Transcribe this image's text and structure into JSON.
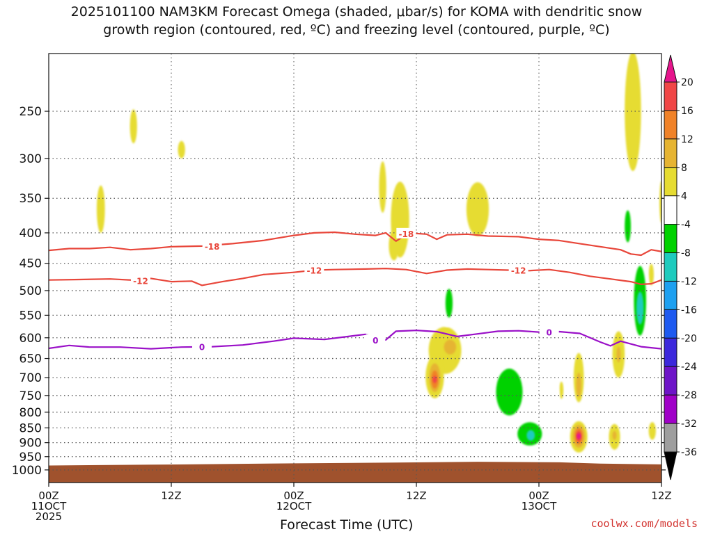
{
  "title": {
    "line1": "2025101100 NAM3KM Forecast Omega (shaded, μbar/s) for KOMA with dendritic snow",
    "line2": "growth region (contoured, red, ºC) and freezing level (contoured, purple, ºC)"
  },
  "credit": "coolwx.com/models",
  "colors": {
    "dgz_contour": "#e8463a",
    "freezing_contour": "#9a10c8",
    "terrain": "#a0522d",
    "grid": "#555555"
  },
  "chart_data": {
    "type": "heatmap",
    "xlabel": "Forecast Time (UTC)",
    "ylabel": "",
    "x_range_hours": [
      0,
      60
    ],
    "y_range_mb": [
      1050,
      200
    ],
    "y_scale": "log",
    "grid": "dotted",
    "y_ticks": [
      250,
      300,
      350,
      400,
      450,
      500,
      550,
      600,
      650,
      700,
      750,
      800,
      850,
      900,
      950,
      1000
    ],
    "y_tick_labels": [
      "250",
      "300",
      "350",
      "400",
      "450",
      "500",
      "550",
      "600",
      "650",
      "700",
      "750",
      "800",
      "850",
      "900",
      "950",
      "1000"
    ],
    "x_ticks": [
      {
        "hour": 0,
        "lines": [
          "00Z",
          "11OCT",
          "2025"
        ]
      },
      {
        "hour": 12,
        "lines": [
          "12Z"
        ]
      },
      {
        "hour": 24,
        "lines": [
          "00Z",
          "12OCT"
        ]
      },
      {
        "hour": 36,
        "lines": [
          "12Z"
        ]
      },
      {
        "hour": 48,
        "lines": [
          "00Z",
          "13OCT"
        ]
      },
      {
        "hour": 60,
        "lines": [
          "12Z"
        ]
      }
    ],
    "colorbar": {
      "labels": [
        "20",
        "16",
        "12",
        "8",
        "4",
        "-4",
        "-8",
        "-12",
        "-16",
        "-20",
        "-24",
        "-28",
        "-32",
        "-36"
      ],
      "segments": [
        {
          "range": [
            -40,
            -36
          ],
          "color": "#000000"
        },
        {
          "range": [
            -36,
            -32
          ],
          "color": "#9e9e9e"
        },
        {
          "range": [
            -32,
            -28
          ],
          "color": "#a000c8"
        },
        {
          "range": [
            -28,
            -24
          ],
          "color": "#6e14c8"
        },
        {
          "range": [
            -24,
            -20
          ],
          "color": "#3c28dc"
        },
        {
          "range": [
            -20,
            -16
          ],
          "color": "#1e5af0"
        },
        {
          "range": [
            -16,
            -12
          ],
          "color": "#1ea0f0"
        },
        {
          "range": [
            -12,
            -8
          ],
          "color": "#1ecbbe"
        },
        {
          "range": [
            -8,
            -4
          ],
          "color": "#00d200"
        },
        {
          "range": [
            -4,
            4
          ],
          "color": "#ffffff"
        },
        {
          "range": [
            4,
            8
          ],
          "color": "#e6dc32"
        },
        {
          "range": [
            8,
            12
          ],
          "color": "#e6b432"
        },
        {
          "range": [
            12,
            16
          ],
          "color": "#f08228"
        },
        {
          "range": [
            16,
            20
          ],
          "color": "#f04646"
        },
        {
          "range": [
            20,
            24
          ],
          "color": "#e6148c"
        }
      ]
    },
    "contours": [
      {
        "level": -18,
        "label": "-18",
        "color": "#e8463a",
        "points": [
          [
            0,
            428
          ],
          [
            2,
            425
          ],
          [
            4,
            425
          ],
          [
            6,
            423
          ],
          [
            8,
            427
          ],
          [
            10,
            425
          ],
          [
            12,
            422
          ],
          [
            15,
            421
          ],
          [
            18,
            417
          ],
          [
            21,
            412
          ],
          [
            24,
            404
          ],
          [
            26,
            400
          ],
          [
            28,
            399
          ],
          [
            30,
            402
          ],
          [
            32,
            404
          ],
          [
            33,
            400
          ],
          [
            34,
            413
          ],
          [
            35,
            403
          ],
          [
            36,
            401
          ],
          [
            37,
            402
          ],
          [
            38,
            410
          ],
          [
            39,
            403
          ],
          [
            41,
            402
          ],
          [
            43,
            405
          ],
          [
            46,
            406
          ],
          [
            48,
            410
          ],
          [
            50,
            412
          ],
          [
            52,
            417
          ],
          [
            54,
            422
          ],
          [
            56,
            427
          ],
          [
            57,
            434
          ],
          [
            58,
            436
          ],
          [
            59,
            427
          ],
          [
            60,
            430
          ]
        ],
        "label_at": [
          [
            16,
            421
          ],
          [
            35,
            401
          ]
        ]
      },
      {
        "level": -12,
        "label": "-12",
        "color": "#e8463a",
        "points": [
          [
            0,
            480
          ],
          [
            3,
            479
          ],
          [
            6,
            478
          ],
          [
            9,
            481
          ],
          [
            10,
            477
          ],
          [
            12,
            483
          ],
          [
            14,
            482
          ],
          [
            15,
            490
          ],
          [
            17,
            483
          ],
          [
            19,
            477
          ],
          [
            21,
            470
          ],
          [
            24,
            466
          ],
          [
            26,
            462
          ],
          [
            28,
            461
          ],
          [
            31,
            460
          ],
          [
            33,
            459
          ],
          [
            35,
            461
          ],
          [
            37,
            468
          ],
          [
            39,
            462
          ],
          [
            41,
            460
          ],
          [
            43,
            461
          ],
          [
            45,
            462
          ],
          [
            47,
            463
          ],
          [
            49,
            461
          ],
          [
            51,
            466
          ],
          [
            53,
            473
          ],
          [
            55,
            478
          ],
          [
            57,
            483
          ],
          [
            58,
            488
          ],
          [
            59,
            487
          ],
          [
            60,
            480
          ]
        ],
        "label_at": [
          [
            9,
            481
          ],
          [
            26,
            462
          ],
          [
            46,
            462
          ]
        ]
      },
      {
        "level": 0,
        "label": "0",
        "color": "#9a10c8",
        "points": [
          [
            0,
            625
          ],
          [
            2,
            618
          ],
          [
            4,
            622
          ],
          [
            7,
            622
          ],
          [
            10,
            626
          ],
          [
            13,
            622
          ],
          [
            16,
            621
          ],
          [
            19,
            617
          ],
          [
            22,
            608
          ],
          [
            24,
            601
          ],
          [
            27,
            604
          ],
          [
            29,
            598
          ],
          [
            31,
            592
          ],
          [
            33,
            605
          ],
          [
            34,
            585
          ],
          [
            36,
            583
          ],
          [
            38,
            586
          ],
          [
            40,
            597
          ],
          [
            42,
            591
          ],
          [
            44,
            585
          ],
          [
            46,
            584
          ],
          [
            48,
            587
          ],
          [
            50,
            586
          ],
          [
            52,
            590
          ],
          [
            54,
            610
          ],
          [
            55,
            619
          ],
          [
            56,
            608
          ],
          [
            58,
            621
          ],
          [
            60,
            626
          ]
        ],
        "label_at": [
          [
            15,
            621
          ],
          [
            32,
            605
          ],
          [
            49,
            587
          ]
        ]
      }
    ],
    "omega_features": [
      {
        "value": 4,
        "t": 8.3,
        "p": 265,
        "dt": 0.35,
        "dp": 18
      },
      {
        "value": 4,
        "t": 13.0,
        "p": 290,
        "dt": 0.35,
        "dp": 10
      },
      {
        "value": 4,
        "t": 5.1,
        "p": 365,
        "dt": 0.4,
        "dp": 35
      },
      {
        "value": 4,
        "t": 32.7,
        "p": 335,
        "dt": 0.35,
        "dp": 35
      },
      {
        "value": 4,
        "t": 34.4,
        "p": 380,
        "dt": 0.9,
        "dp": 60
      },
      {
        "value": 4,
        "t": 33.8,
        "p": 420,
        "dt": 0.5,
        "dp": 25
      },
      {
        "value": 4,
        "t": 42.0,
        "p": 365,
        "dt": 1.1,
        "dp": 40
      },
      {
        "value": 4,
        "t": 57.2,
        "p": 250,
        "dt": 0.8,
        "dp": 65
      },
      {
        "value": 4,
        "t": 60.0,
        "p": 355,
        "dt": 0.2,
        "dp": 30
      },
      {
        "value": 4,
        "t": 59.0,
        "p": 470,
        "dt": 0.25,
        "dp": 20
      },
      {
        "value": 4,
        "t": 38.8,
        "p": 630,
        "dt": 1.6,
        "dp": 60
      },
      {
        "value": 8,
        "t": 39.3,
        "p": 622,
        "dt": 0.6,
        "dp": 18
      },
      {
        "value": 4,
        "t": 37.8,
        "p": 698,
        "dt": 0.9,
        "dp": 60
      },
      {
        "value": 8,
        "t": 37.8,
        "p": 700,
        "dt": 0.55,
        "dp": 40
      },
      {
        "value": 12,
        "t": 37.8,
        "p": 705,
        "dt": 0.35,
        "dp": 25
      },
      {
        "value": 16,
        "t": 37.8,
        "p": 705,
        "dt": 0.15,
        "dp": 10
      },
      {
        "value": 4,
        "t": 51.9,
        "p": 700,
        "dt": 0.5,
        "dp": 70
      },
      {
        "value": 8,
        "t": 51.9,
        "p": 720,
        "dt": 0.25,
        "dp": 35
      },
      {
        "value": 4,
        "t": 51.9,
        "p": 880,
        "dt": 0.85,
        "dp": 55
      },
      {
        "value": 8,
        "t": 51.9,
        "p": 878,
        "dt": 0.6,
        "dp": 40
      },
      {
        "value": 12,
        "t": 51.9,
        "p": 878,
        "dt": 0.4,
        "dp": 28
      },
      {
        "value": 16,
        "t": 51.9,
        "p": 878,
        "dt": 0.25,
        "dp": 18
      },
      {
        "value": 20,
        "t": 51.9,
        "p": 878,
        "dt": 0.12,
        "dp": 9
      },
      {
        "value": 4,
        "t": 55.4,
        "p": 880,
        "dt": 0.55,
        "dp": 45
      },
      {
        "value": 8,
        "t": 55.4,
        "p": 875,
        "dt": 0.2,
        "dp": 15
      },
      {
        "value": 4,
        "t": 55.8,
        "p": 640,
        "dt": 0.6,
        "dp": 60
      },
      {
        "value": 8,
        "t": 55.8,
        "p": 640,
        "dt": 0.2,
        "dp": 20
      },
      {
        "value": 4,
        "t": 59.1,
        "p": 860,
        "dt": 0.35,
        "dp": 30
      },
      {
        "value": 4,
        "t": 50.2,
        "p": 735,
        "dt": 0.15,
        "dp": 25
      },
      {
        "value": -4,
        "t": 56.3,
        "p": 390,
        "dt": 1.1,
        "dp": 70
      },
      {
        "value": -8,
        "t": 56.7,
        "p": 390,
        "dt": 0.3,
        "dp": 25
      },
      {
        "value": -4,
        "t": 57.8,
        "p": 520,
        "dt": 1.0,
        "dp": 120
      },
      {
        "value": -8,
        "t": 57.9,
        "p": 520,
        "dt": 0.6,
        "dp": 75
      },
      {
        "value": -12,
        "t": 57.9,
        "p": 535,
        "dt": 0.35,
        "dp": 35
      },
      {
        "value": -4,
        "t": 57.4,
        "p": 760,
        "dt": 0.35,
        "dp": 110
      },
      {
        "value": -4,
        "t": 39.0,
        "p": 520,
        "dt": 0.8,
        "dp": 55
      },
      {
        "value": -8,
        "t": 39.2,
        "p": 525,
        "dt": 0.35,
        "dp": 30
      },
      {
        "value": -4,
        "t": 33.6,
        "p": 568,
        "dt": 0.3,
        "dp": 35
      },
      {
        "value": -4,
        "t": 46.2,
        "p": 755,
        "dt": 3.8,
        "dp": 175
      },
      {
        "value": -4,
        "t": 42.0,
        "p": 840,
        "dt": 2.3,
        "dp": 55
      },
      {
        "value": -8,
        "t": 45.1,
        "p": 740,
        "dt": 1.3,
        "dp": 70
      },
      {
        "value": -8,
        "t": 47.1,
        "p": 870,
        "dt": 1.2,
        "dp": 40
      },
      {
        "value": -12,
        "t": 47.2,
        "p": 875,
        "dt": 0.4,
        "dp": 18
      },
      {
        "value": -4,
        "t": 49.1,
        "p": 840,
        "dt": 1.3,
        "dp": 70
      },
      {
        "value": -4,
        "t": 33.2,
        "p": 770,
        "dt": 0.8,
        "dp": 45
      },
      {
        "value": -4,
        "t": 36.0,
        "p": 775,
        "dt": 0.25,
        "dp": 15
      },
      {
        "value": -4,
        "t": 31.4,
        "p": 805,
        "dt": 0.15,
        "dp": 15
      },
      {
        "value": -4,
        "t": 10.3,
        "p": 775,
        "dt": 0.12,
        "dp": 25
      }
    ],
    "terrain_top_mb": [
      [
        0,
        983
      ],
      [
        10,
        980
      ],
      [
        24,
        975
      ],
      [
        34,
        972
      ],
      [
        42,
        969
      ],
      [
        50,
        971
      ],
      [
        54,
        976
      ],
      [
        60,
        979
      ]
    ]
  }
}
